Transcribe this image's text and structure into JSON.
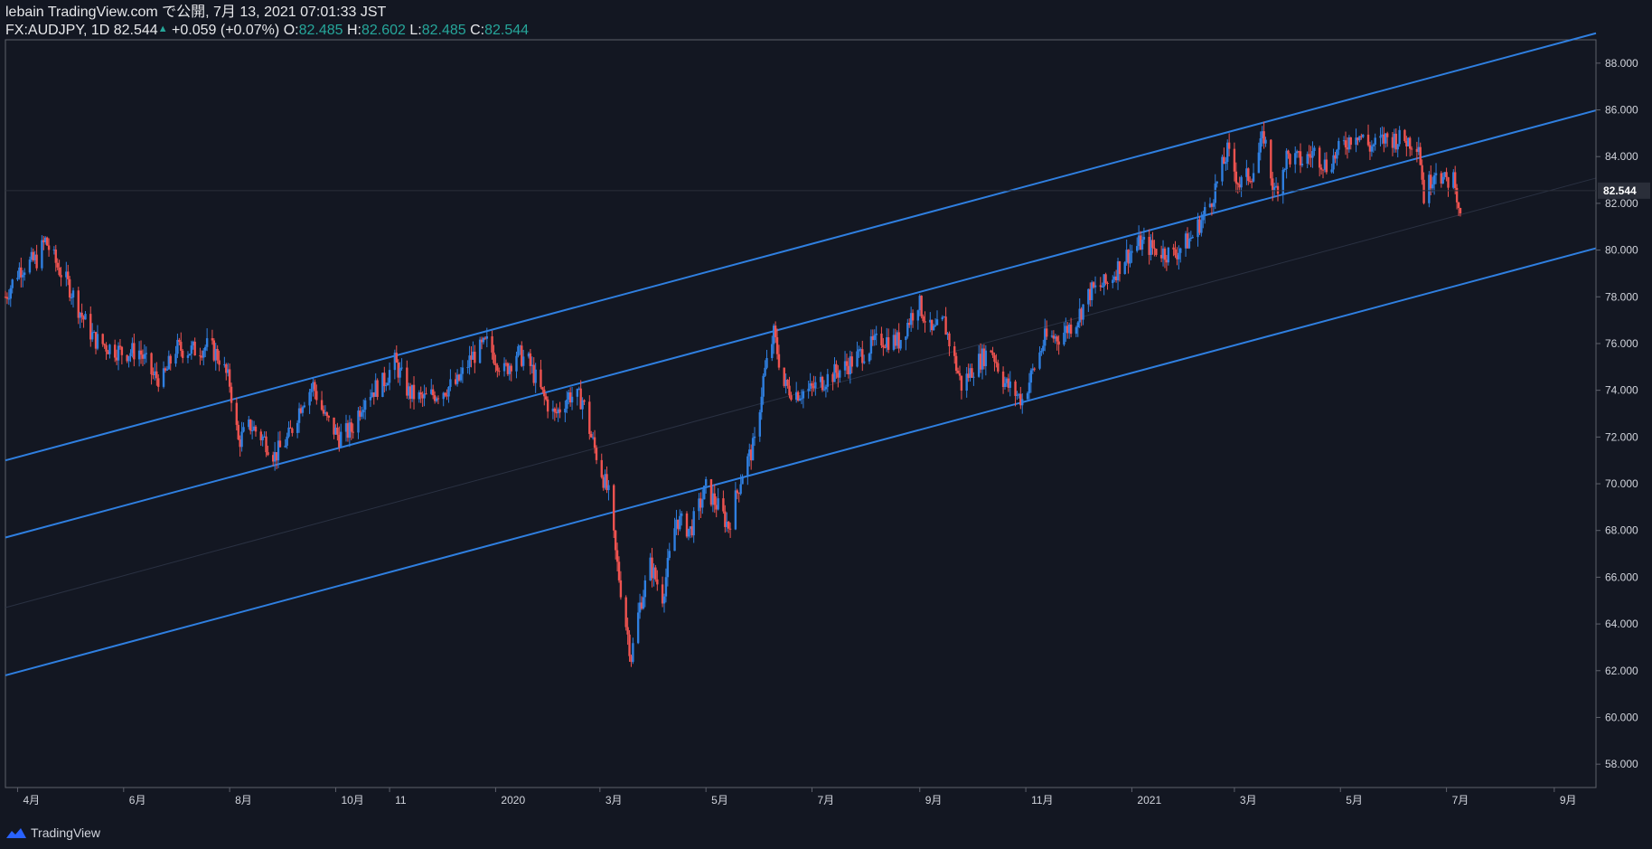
{
  "header": {
    "publish_line": "lebain TradingView.com で公開, 7月 13, 2021 07:01:33 JST",
    "symbol_interval": "FX:AUDJPY, 1D",
    "last": "82.544",
    "change": "+0.059 (+0.07%)",
    "o_label": "O:",
    "o": "82.485",
    "h_label": "H:",
    "h": "82.602",
    "l_label": "L:",
    "l": "82.485",
    "c_label": "C:",
    "c": "82.544"
  },
  "footer": {
    "brand": "TradingView"
  },
  "colors": {
    "background": "#131722",
    "up": "#2f7fe0",
    "down": "#ef5350",
    "channel": "#2f7fe0",
    "axis_text": "#d1d4dc",
    "border": "#5d606b",
    "price_tag_bg": "#2a2e39"
  },
  "chart_data": {
    "type": "candlestick",
    "symbol": "FX:AUDJPY",
    "interval": "1D",
    "ylim": [
      57,
      89
    ],
    "y_ticks": [
      "58.000",
      "60.000",
      "62.000",
      "64.000",
      "66.000",
      "68.000",
      "70.000",
      "72.000",
      "74.000",
      "76.000",
      "78.000",
      "80.000",
      "82.000",
      "84.000",
      "86.000",
      "88.000"
    ],
    "x_ticks": [
      {
        "label": "4月",
        "date": "2019-04-01"
      },
      {
        "label": "6月",
        "date": "2019-06-01"
      },
      {
        "label": "8月",
        "date": "2019-08-01"
      },
      {
        "label": "10月",
        "date": "2019-10-01"
      },
      {
        "label": "11",
        "date": "2019-11-01"
      },
      {
        "label": "2020",
        "date": "2020-01-01"
      },
      {
        "label": "3月",
        "date": "2020-03-01"
      },
      {
        "label": "5月",
        "date": "2020-05-01"
      },
      {
        "label": "7月",
        "date": "2020-07-01"
      },
      {
        "label": "9月",
        "date": "2020-09-01"
      },
      {
        "label": "11月",
        "date": "2020-11-01"
      },
      {
        "label": "2021",
        "date": "2021-01-01"
      },
      {
        "label": "3月",
        "date": "2021-03-01"
      },
      {
        "label": "5月",
        "date": "2021-05-01"
      },
      {
        "label": "7月",
        "date": "2021-07-01"
      },
      {
        "label": "9月",
        "date": "2021-09-01"
      }
    ],
    "last_price": "82.544",
    "price_path": [
      [
        "2019-03-25",
        78.0
      ],
      [
        "2019-04-02",
        79.2
      ],
      [
        "2019-04-12",
        79.6
      ],
      [
        "2019-04-17",
        80.4
      ],
      [
        "2019-04-24",
        79.3
      ],
      [
        "2019-05-01",
        78.4
      ],
      [
        "2019-05-08",
        77.2
      ],
      [
        "2019-05-15",
        76.2
      ],
      [
        "2019-05-22",
        75.9
      ],
      [
        "2019-06-01",
        75.6
      ],
      [
        "2019-06-10",
        75.7
      ],
      [
        "2019-06-18",
        74.6
      ],
      [
        "2019-06-24",
        74.5
      ],
      [
        "2019-07-01",
        75.8
      ],
      [
        "2019-07-10",
        75.7
      ],
      [
        "2019-07-20",
        75.9
      ],
      [
        "2019-07-26",
        75.4
      ],
      [
        "2019-08-01",
        74.3
      ],
      [
        "2019-08-06",
        71.8
      ],
      [
        "2019-08-13",
        72.5
      ],
      [
        "2019-08-22",
        71.8
      ],
      [
        "2019-08-27",
        71.2
      ],
      [
        "2019-09-04",
        72.0
      ],
      [
        "2019-09-12",
        73.6
      ],
      [
        "2019-09-18",
        74.2
      ],
      [
        "2019-09-25",
        72.8
      ],
      [
        "2019-10-03",
        72.0
      ],
      [
        "2019-10-10",
        72.3
      ],
      [
        "2019-10-18",
        73.8
      ],
      [
        "2019-10-28",
        74.3
      ],
      [
        "2019-11-04",
        75.2
      ],
      [
        "2019-11-12",
        73.9
      ],
      [
        "2019-11-20",
        73.6
      ],
      [
        "2019-12-01",
        74.0
      ],
      [
        "2019-12-10",
        74.3
      ],
      [
        "2019-12-18",
        75.4
      ],
      [
        "2019-12-27",
        76.0
      ],
      [
        "2020-01-06",
        74.8
      ],
      [
        "2020-01-13",
        75.6
      ],
      [
        "2020-01-20",
        75.2
      ],
      [
        "2020-01-28",
        73.8
      ],
      [
        "2020-02-04",
        72.9
      ],
      [
        "2020-02-12",
        73.8
      ],
      [
        "2020-02-20",
        73.6
      ],
      [
        "2020-02-25",
        72.0
      ],
      [
        "2020-03-02",
        70.5
      ],
      [
        "2020-03-06",
        69.5
      ],
      [
        "2020-03-10",
        67.0
      ],
      [
        "2020-03-16",
        64.0
      ],
      [
        "2020-03-19",
        62.6
      ],
      [
        "2020-03-24",
        64.8
      ],
      [
        "2020-03-30",
        66.5
      ],
      [
        "2020-04-06",
        65.2
      ],
      [
        "2020-04-14",
        68.5
      ],
      [
        "2020-04-22",
        68.0
      ],
      [
        "2020-05-01",
        69.8
      ],
      [
        "2020-05-08",
        69.0
      ],
      [
        "2020-05-14",
        68.2
      ],
      [
        "2020-05-22",
        70.5
      ],
      [
        "2020-05-29",
        71.7
      ],
      [
        "2020-06-03",
        74.5
      ],
      [
        "2020-06-09",
        76.4
      ],
      [
        "2020-06-15",
        74.2
      ],
      [
        "2020-06-22",
        73.9
      ],
      [
        "2020-06-30",
        74.0
      ],
      [
        "2020-07-09",
        74.5
      ],
      [
        "2020-07-20",
        75.0
      ],
      [
        "2020-07-30",
        75.6
      ],
      [
        "2020-08-10",
        76.2
      ],
      [
        "2020-08-20",
        76.1
      ],
      [
        "2020-08-31",
        77.8
      ],
      [
        "2020-09-08",
        76.4
      ],
      [
        "2020-09-15",
        76.9
      ],
      [
        "2020-09-25",
        74.2
      ],
      [
        "2020-10-02",
        75.0
      ],
      [
        "2020-10-12",
        75.8
      ],
      [
        "2020-10-20",
        74.3
      ],
      [
        "2020-10-30",
        73.6
      ],
      [
        "2020-11-05",
        74.8
      ],
      [
        "2020-11-12",
        76.2
      ],
      [
        "2020-11-20",
        76.3
      ],
      [
        "2020-11-30",
        77.0
      ],
      [
        "2020-12-08",
        78.2
      ],
      [
        "2020-12-18",
        78.6
      ],
      [
        "2020-12-28",
        79.7
      ],
      [
        "2021-01-06",
        80.3
      ],
      [
        "2021-01-15",
        80.0
      ],
      [
        "2021-01-25",
        79.8
      ],
      [
        "2021-02-05",
        80.6
      ],
      [
        "2021-02-15",
        82.0
      ],
      [
        "2021-02-25",
        84.2
      ],
      [
        "2021-03-04",
        82.8
      ],
      [
        "2021-03-12",
        83.4
      ],
      [
        "2021-03-18",
        84.9
      ],
      [
        "2021-03-24",
        82.4
      ],
      [
        "2021-03-31",
        84.0
      ],
      [
        "2021-04-09",
        83.8
      ],
      [
        "2021-04-16",
        84.2
      ],
      [
        "2021-04-23",
        83.6
      ],
      [
        "2021-05-03",
        84.5
      ],
      [
        "2021-05-10",
        85.1
      ],
      [
        "2021-05-18",
        84.4
      ],
      [
        "2021-05-28",
        84.8
      ],
      [
        "2021-06-08",
        84.7
      ],
      [
        "2021-06-15",
        84.6
      ],
      [
        "2021-06-18",
        82.3
      ],
      [
        "2021-06-25",
        83.6
      ],
      [
        "2021-06-30",
        82.9
      ],
      [
        "2021-07-06",
        83.1
      ],
      [
        "2021-07-08",
        81.5
      ],
      [
        "2021-07-12",
        82.544
      ]
    ],
    "channel_lines": [
      {
        "name": "upper",
        "from": [
          "2019-03-25",
          71.0
        ],
        "to": [
          "2021-09-01",
          88.8
        ]
      },
      {
        "name": "middle",
        "from": [
          "2019-03-25",
          67.7
        ],
        "to": [
          "2021-09-01",
          85.5
        ]
      },
      {
        "name": "lower",
        "from": [
          "2019-03-25",
          61.8
        ],
        "to": [
          "2021-09-01",
          79.6
        ]
      },
      {
        "name": "center",
        "from": [
          "2019-03-25",
          64.7
        ],
        "to": [
          "2021-09-01",
          82.6
        ]
      }
    ]
  }
}
